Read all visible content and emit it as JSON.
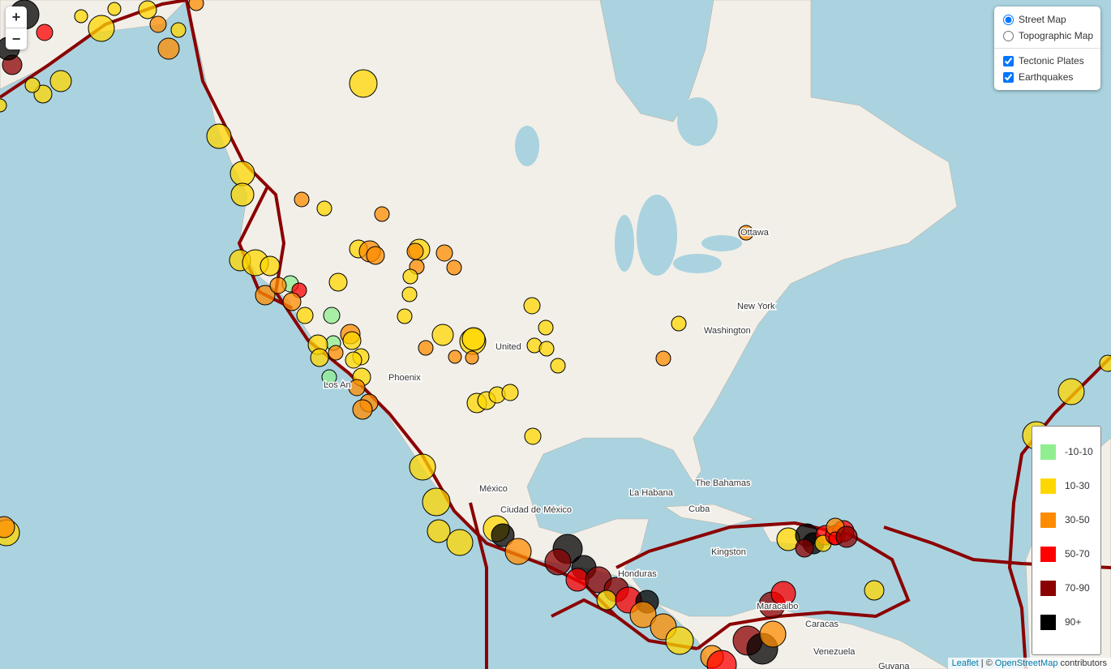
{
  "zoom": {
    "in": "+",
    "out": "−"
  },
  "layers": {
    "base": [
      {
        "label": "Street Map",
        "checked": true
      },
      {
        "label": "Topographic Map",
        "checked": false
      }
    ],
    "overlays": [
      {
        "label": "Tectonic Plates",
        "checked": true
      },
      {
        "label": "Earthquakes",
        "checked": true
      }
    ]
  },
  "legend": {
    "items": [
      {
        "label": "-10-10",
        "color": "#90ee90"
      },
      {
        "label": "10-30",
        "color": "#ffd700"
      },
      {
        "label": "30-50",
        "color": "#ff8c00"
      },
      {
        "label": "50-70",
        "color": "#ff0000"
      },
      {
        "label": "70-90",
        "color": "#8b0000"
      },
      {
        "label": "90+",
        "color": "#000000"
      }
    ]
  },
  "places": [
    "Ottawa",
    "New York",
    "Washington",
    "Phoenix",
    "Los An",
    "United",
    "México",
    "Ciudad de México",
    "La Habana",
    "The Bahamas",
    "Cuba",
    "Kingston",
    "Honduras",
    "Maracaibo",
    "Caracas",
    "Venezuela",
    "Guyana"
  ],
  "attribution": {
    "leaflet": "Leaflet",
    "sep": "| ©",
    "osm": "OpenStreetMap",
    "rest": "contributors"
  }
}
